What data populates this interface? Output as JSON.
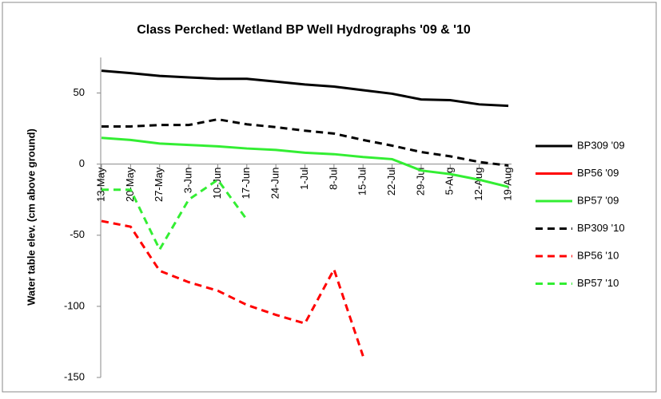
{
  "chart_data": {
    "type": "line",
    "title": "Class Perched: Wetland BP Well Hydrographs '09 & '10",
    "y_label": "Water table elev. (cm above ground)",
    "categories": [
      "13-May",
      "20-May",
      "27-May",
      "3-Jun",
      "10-Jun",
      "17-Jun",
      "24-Jun",
      "1-Jul",
      "8-Jul",
      "15-Jul",
      "22-Jul",
      "29-Jul",
      "5-Aug",
      "12-Aug",
      "19-Aug"
    ],
    "ylim": [
      -150,
      75
    ],
    "yticks": [
      -150,
      -100,
      -50,
      0,
      50
    ],
    "series": [
      {
        "name": "BP309 '09",
        "color": "#000000",
        "dash": false,
        "values": [
          65.7,
          64,
          62,
          61,
          60,
          60,
          58,
          56,
          54.5,
          52,
          49.5,
          45.5,
          45,
          42,
          41
        ]
      },
      {
        "name": "BP56 '09",
        "color": "#ff0000",
        "dash": false,
        "values": [
          null,
          null,
          null,
          null,
          null,
          null,
          null,
          null,
          null,
          null,
          null,
          null,
          null,
          null,
          null
        ]
      },
      {
        "name": "BP57 '09",
        "color": "#33ee33",
        "dash": false,
        "values": [
          18.5,
          17,
          14.5,
          13.5,
          12.5,
          11,
          10,
          8,
          7,
          5,
          3.5,
          -4.5,
          -7,
          -11,
          -16
        ]
      },
      {
        "name": "BP309 '10",
        "color": "#000000",
        "dash": true,
        "values": [
          26.5,
          26.5,
          27.5,
          27.5,
          31.5,
          28,
          26,
          23.5,
          21.5,
          17,
          13,
          8.5,
          5.5,
          1.5,
          -1
        ]
      },
      {
        "name": "BP56 '10",
        "color": "#ff0000",
        "dash": true,
        "values": [
          -40,
          -44,
          -75,
          -83,
          -89,
          -99,
          -106,
          -112,
          -74,
          -135,
          null,
          null,
          null,
          null,
          null
        ]
      },
      {
        "name": "BP57 '10",
        "color": "#33ee33",
        "dash": true,
        "values": [
          -18,
          -18,
          -60,
          -25,
          -11,
          -39,
          null,
          null,
          null,
          null,
          null,
          null,
          null,
          null,
          null
        ]
      }
    ]
  }
}
